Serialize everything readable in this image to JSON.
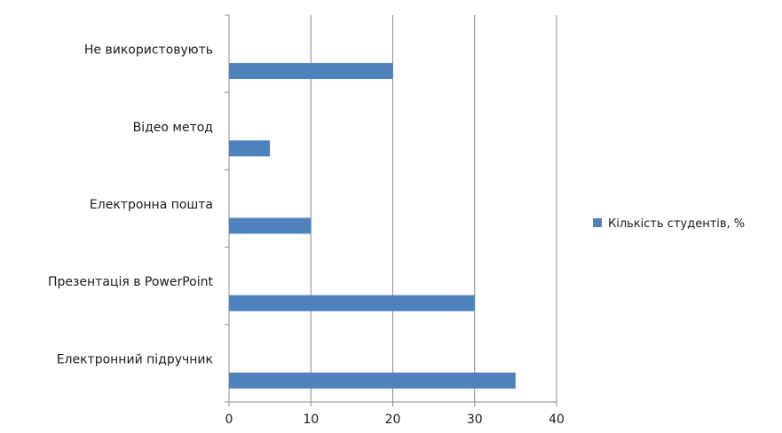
{
  "chart_data": {
    "type": "bar",
    "orientation": "horizontal",
    "categories": [
      "Не використовують",
      "Відео метод",
      "Електронна пошта",
      "Презентація в PowerPoint",
      "Електронний підручник"
    ],
    "series": [
      {
        "name": "Кількість студентів, %",
        "values": [
          20,
          5,
          10,
          30,
          35
        ],
        "color": "#4f81bd"
      }
    ],
    "xlim": [
      0,
      40
    ],
    "xticks": [
      0,
      10,
      20,
      30,
      40
    ],
    "grid": true,
    "legend_position": "right"
  }
}
